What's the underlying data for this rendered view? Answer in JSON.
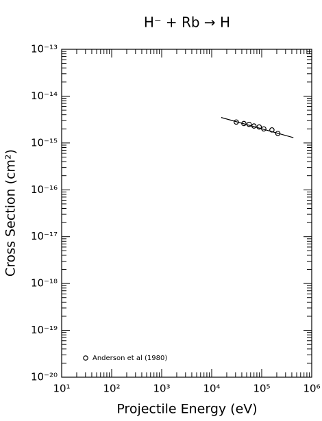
{
  "chart_data": {
    "type": "scatter",
    "title": "H⁻ + Rb → H",
    "x_label": "Projectile Energy (eV)",
    "y_label": "Cross Section (cm²)",
    "log_x": true,
    "log_y": true,
    "minor_ticks": true,
    "xlim": [
      10,
      1000000
    ],
    "ylim": [
      1e-20,
      1e-13
    ],
    "xticks": [
      {
        "value": 10,
        "label": "10¹"
      },
      {
        "value": 100,
        "label": "10²"
      },
      {
        "value": 1000,
        "label": "10³"
      },
      {
        "value": 10000,
        "label": "10⁴"
      },
      {
        "value": 100000,
        "label": "10⁵"
      },
      {
        "value": 1000000,
        "label": "10⁶"
      }
    ],
    "yticks": [
      {
        "value": 1e-20,
        "label": "10⁻²⁰"
      },
      {
        "value": 1e-19,
        "label": "10⁻¹⁹"
      },
      {
        "value": 1e-18,
        "label": "10⁻¹⁸"
      },
      {
        "value": 1e-17,
        "label": "10⁻¹⁷"
      },
      {
        "value": 1e-16,
        "label": "10⁻¹⁶"
      },
      {
        "value": 1e-15,
        "label": "10⁻¹⁵"
      },
      {
        "value": 1e-14,
        "label": "10⁻¹⁴"
      },
      {
        "value": 1e-13,
        "label": "10⁻¹³"
      }
    ],
    "series": [
      {
        "name": "Anderson et al (1980)",
        "color": "#000000",
        "marker": "circle",
        "x": [
          31000,
          44000,
          56000,
          70000,
          89000,
          110000,
          160000,
          210000
        ],
        "values": [
          2.8e-15,
          2.6e-15,
          2.5e-15,
          2.3e-15,
          2.2e-15,
          2e-15,
          1.9e-15,
          1.6e-15
        ]
      },
      {
        "color": "#000000",
        "marker": "line",
        "x": [
          15500,
          430000
        ],
        "values": [
          3.5e-15,
          1.3e-15
        ]
      }
    ],
    "legend": "lower-left"
  }
}
